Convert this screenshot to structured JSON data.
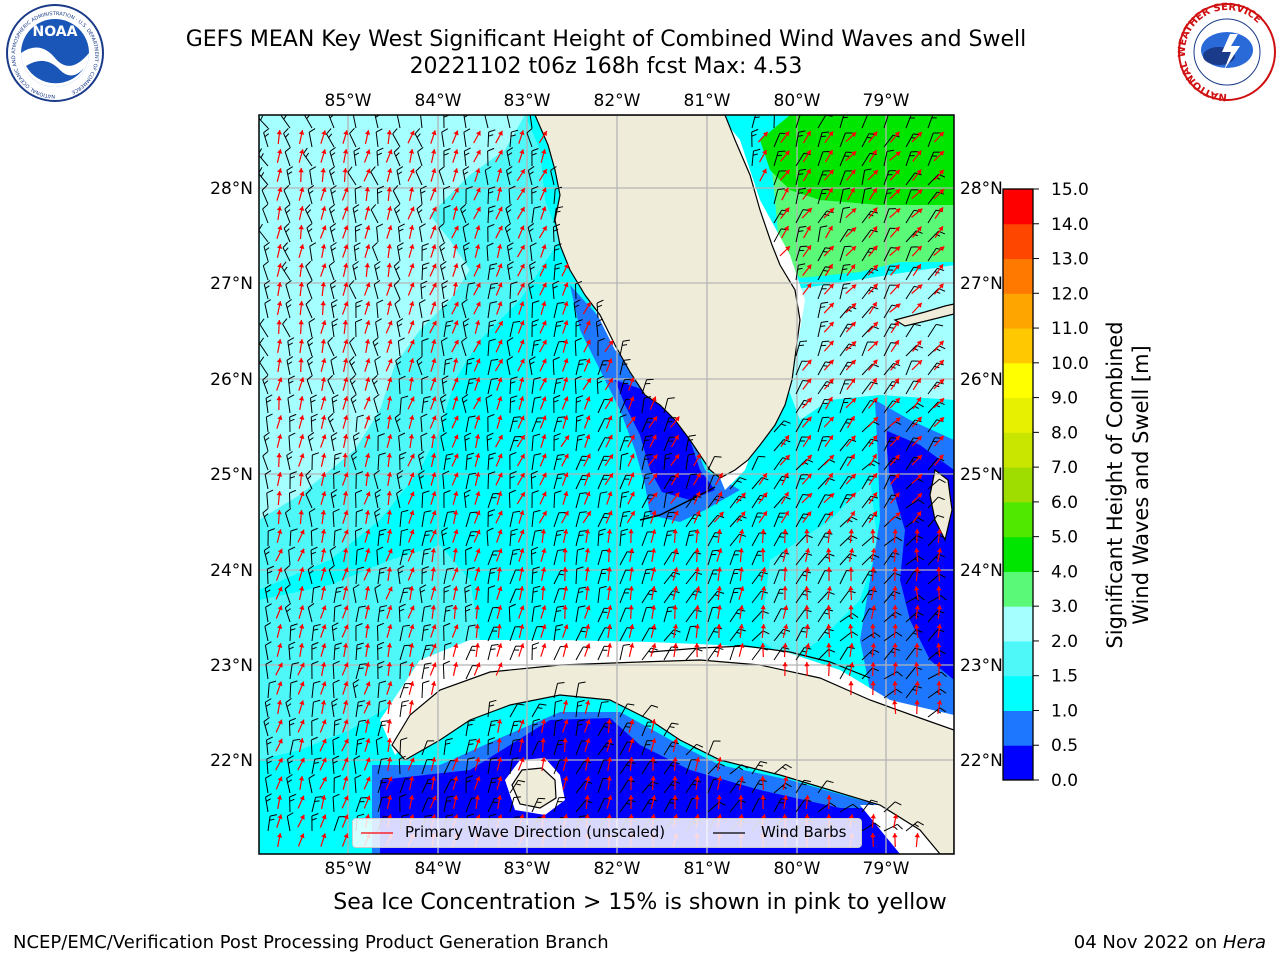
{
  "title": {
    "line1": "GEFS MEAN Key West Significant Height of Combined Wind Waves and Swell",
    "line2": "20221102 t06z 168h fcst   Max: 4.53"
  },
  "map": {
    "lon_labels": [
      "85°W",
      "84°W",
      "83°W",
      "82°W",
      "81°W",
      "80°W",
      "79°W"
    ],
    "lat_labels": [
      "28°N",
      "27°N",
      "26°N",
      "25°N",
      "24°N",
      "23°N",
      "22°N"
    ],
    "legend": {
      "wave_label": "Primary Wave Direction (unscaled)",
      "wind_label": "Wind Barbs",
      "wave_color": "#ff0000",
      "wind_color": "#000000"
    },
    "colors": {
      "land": "#efedda",
      "grid": "#b4b4b4",
      "very_low": "#0000ff",
      "low": "#1e78ff",
      "mid": "#00ffff",
      "mid_high": "#4ff8f8",
      "high": "#a5ffff",
      "higher": "#5af978",
      "highest": "#00e600"
    }
  },
  "colorbar": {
    "label_line1": "Significant Height of Combined",
    "label_line2": "Wind Waves and Swell [m]",
    "tick_labels": [
      "15.0",
      "14.0",
      "13.0",
      "12.0",
      "11.0",
      "10.0",
      "9.0",
      "8.0",
      "7.0",
      "6.0",
      "5.0",
      "4.0",
      "3.0",
      "2.0",
      "1.5",
      "1.0",
      "0.5",
      "0.0"
    ],
    "bins": [
      {
        "from": 0.0,
        "to": 0.5,
        "color": "#0000ff"
      },
      {
        "from": 0.5,
        "to": 1.0,
        "color": "#1e78ff"
      },
      {
        "from": 1.0,
        "to": 1.5,
        "color": "#00ffff"
      },
      {
        "from": 1.5,
        "to": 2.0,
        "color": "#4ff8f8"
      },
      {
        "from": 2.0,
        "to": 3.0,
        "color": "#a5ffff"
      },
      {
        "from": 3.0,
        "to": 4.0,
        "color": "#5af978"
      },
      {
        "from": 4.0,
        "to": 5.0,
        "color": "#00e600"
      },
      {
        "from": 5.0,
        "to": 6.0,
        "color": "#51e800"
      },
      {
        "from": 6.0,
        "to": 7.0,
        "color": "#9fdc00"
      },
      {
        "from": 7.0,
        "to": 8.0,
        "color": "#c8e600"
      },
      {
        "from": 8.0,
        "to": 9.0,
        "color": "#e6f000"
      },
      {
        "from": 9.0,
        "to": 10.0,
        "color": "#ffff00"
      },
      {
        "from": 10.0,
        "to": 11.0,
        "color": "#ffc800"
      },
      {
        "from": 11.0,
        "to": 12.0,
        "color": "#ffa500"
      },
      {
        "from": 12.0,
        "to": 13.0,
        "color": "#ff7800"
      },
      {
        "from": 13.0,
        "to": 14.0,
        "color": "#ff4600"
      },
      {
        "from": 14.0,
        "to": 15.0,
        "color": "#ff0000"
      }
    ]
  },
  "footer": {
    "note": "Sea Ice Concentration > 15% is shown in pink to yellow",
    "credit_left": "NCEP/EMC/Verification Post Processing Product Generation Branch",
    "credit_date": "04 Nov 2022 on ",
    "credit_host": "Hera"
  },
  "logos": {
    "noaa_text": "NOAA",
    "noaa_ring_text": "NATIONAL OCEANIC AND ATMOSPHERIC ADMINISTRATION · U.S. DEPARTMENT OF COMMERCE",
    "nws_ring_text": "NATIONAL WEATHER SERVICE"
  }
}
